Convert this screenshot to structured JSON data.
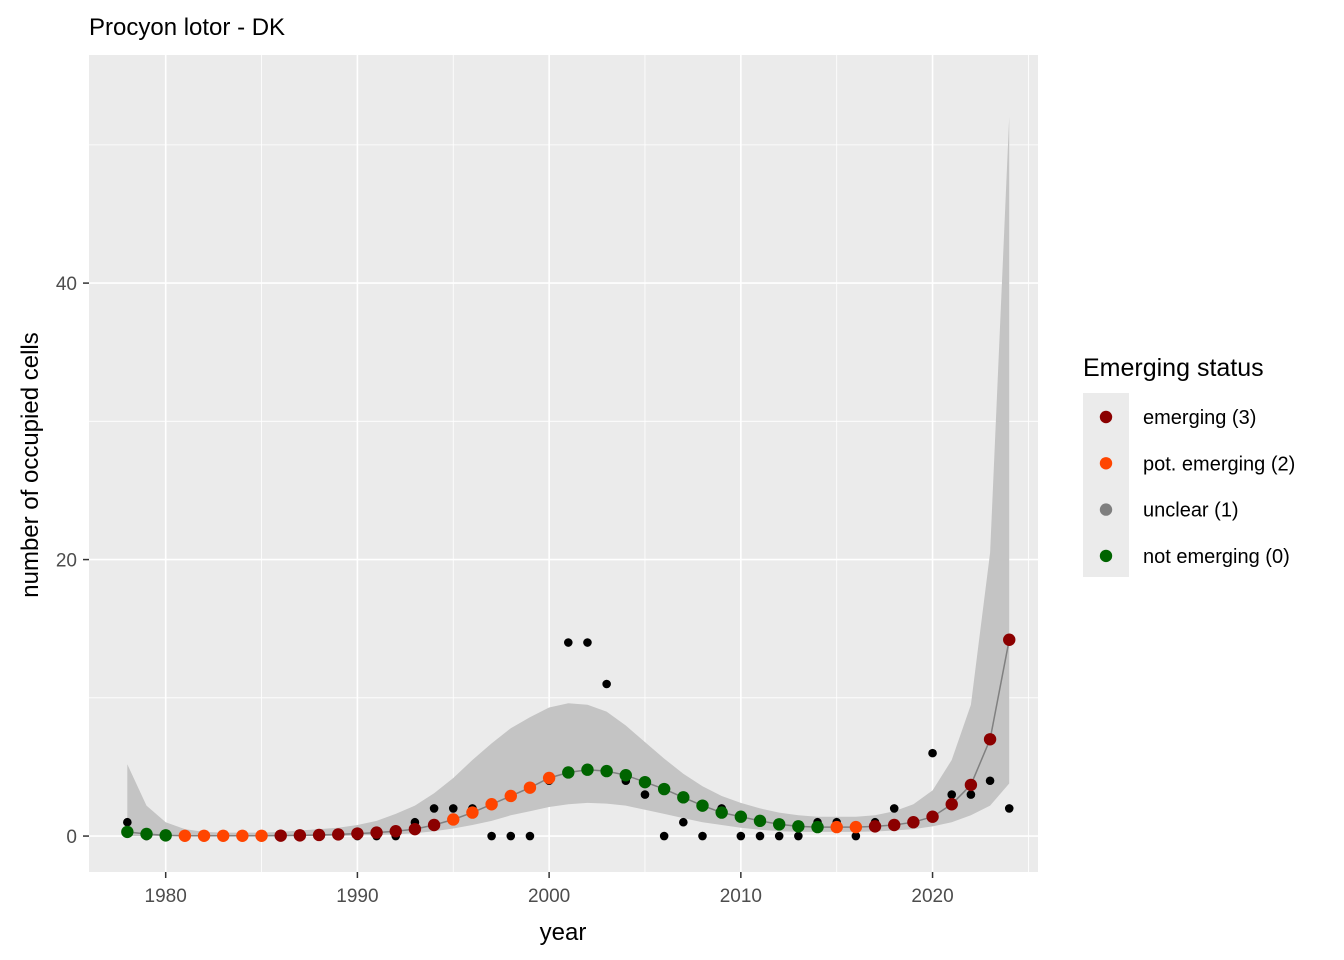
{
  "chart_data": {
    "type": "scatter",
    "title": "Procyon lotor - DK",
    "xlabel": "year",
    "ylabel": "number of occupied cells",
    "xlim": [
      1976,
      2025.5
    ],
    "ylim": [
      -2.6,
      56.5
    ],
    "x_ticks": [
      1980,
      1990,
      2000,
      2010,
      2020
    ],
    "y_ticks": [
      0,
      20,
      40
    ],
    "grid": true,
    "legend": {
      "title": "Emerging status",
      "position": "right",
      "entries": [
        {
          "label": "emerging (3)",
          "color": "#8b0000"
        },
        {
          "label": "pot. emerging (2)",
          "color": "#ff4500"
        },
        {
          "label": "unclear (1)",
          "color": "#7f7f7f"
        },
        {
          "label": "not emerging (0)",
          "color": "#006400"
        }
      ]
    },
    "colors": {
      "panel": "#ebebeb",
      "grid": "#ffffff",
      "ribbon": "#c4c4c4",
      "trend_line": "#808080",
      "observed_points": "#000000"
    },
    "observed": {
      "x": [
        1978,
        1979,
        1980,
        1981,
        1982,
        1983,
        1984,
        1985,
        1986,
        1987,
        1988,
        1989,
        1990,
        1991,
        1992,
        1993,
        1994,
        1995,
        1996,
        1997,
        1998,
        1999,
        2000,
        2001,
        2002,
        2003,
        2004,
        2005,
        2006,
        2007,
        2008,
        2009,
        2010,
        2011,
        2012,
        2013,
        2014,
        2015,
        2016,
        2017,
        2018,
        2019,
        2020,
        2021,
        2022,
        2023,
        2024
      ],
      "y": [
        1,
        0,
        0,
        0,
        0,
        0,
        0,
        0,
        0,
        0,
        0,
        0,
        0,
        0,
        0,
        1,
        2,
        2,
        2,
        0,
        0,
        0,
        4,
        14,
        14,
        11,
        4,
        3,
        0,
        1,
        0,
        2,
        0,
        0,
        0,
        0,
        1,
        1,
        0,
        1,
        2,
        1,
        6,
        3,
        3,
        4,
        2
      ]
    },
    "trend": {
      "x": [
        1978,
        1979,
        1980,
        1981,
        1982,
        1983,
        1984,
        1985,
        1986,
        1987,
        1988,
        1989,
        1990,
        1991,
        1992,
        1993,
        1994,
        1995,
        1996,
        1997,
        1998,
        1999,
        2000,
        2001,
        2002,
        2003,
        2004,
        2005,
        2006,
        2007,
        2008,
        2009,
        2010,
        2011,
        2012,
        2013,
        2014,
        2015,
        2016,
        2017,
        2018,
        2019,
        2020,
        2021,
        2022,
        2023,
        2024
      ],
      "y": [
        0.3,
        0.15,
        0.05,
        0.02,
        0.02,
        0.02,
        0.02,
        0.02,
        0.03,
        0.05,
        0.08,
        0.12,
        0.18,
        0.25,
        0.35,
        0.5,
        0.8,
        1.2,
        1.7,
        2.3,
        2.9,
        3.5,
        4.2,
        4.6,
        4.8,
        4.7,
        4.4,
        3.9,
        3.4,
        2.8,
        2.2,
        1.7,
        1.4,
        1.1,
        0.85,
        0.7,
        0.65,
        0.65,
        0.65,
        0.7,
        0.8,
        1.0,
        1.4,
        2.3,
        3.7,
        7.0,
        14.2
      ],
      "lower": [
        0.0,
        0.0,
        0.0,
        0.0,
        0.0,
        0.0,
        0.0,
        0.0,
        0.0,
        0.0,
        0.0,
        0.0,
        0.05,
        0.08,
        0.12,
        0.2,
        0.35,
        0.55,
        0.8,
        1.1,
        1.5,
        1.8,
        2.1,
        2.3,
        2.4,
        2.35,
        2.2,
        1.9,
        1.6,
        1.3,
        1.0,
        0.8,
        0.6,
        0.45,
        0.35,
        0.3,
        0.3,
        0.3,
        0.3,
        0.33,
        0.4,
        0.5,
        0.7,
        1.0,
        1.5,
        2.2,
        3.8
      ],
      "upper": [
        5.2,
        2.2,
        1.0,
        0.5,
        0.3,
        0.25,
        0.25,
        0.25,
        0.3,
        0.4,
        0.5,
        0.6,
        0.8,
        1.1,
        1.6,
        2.2,
        3.1,
        4.2,
        5.5,
        6.7,
        7.8,
        8.6,
        9.3,
        9.6,
        9.5,
        9.0,
        8.0,
        6.8,
        5.6,
        4.5,
        3.6,
        2.9,
        2.4,
        2.0,
        1.7,
        1.5,
        1.4,
        1.4,
        1.4,
        1.5,
        1.8,
        2.3,
        3.3,
        5.5,
        9.5,
        20.5,
        52.0
      ],
      "status": [
        "not emerging (0)",
        "not emerging (0)",
        "not emerging (0)",
        "pot. emerging (2)",
        "pot. emerging (2)",
        "pot. emerging (2)",
        "pot. emerging (2)",
        "pot. emerging (2)",
        "emerging (3)",
        "emerging (3)",
        "emerging (3)",
        "emerging (3)",
        "emerging (3)",
        "emerging (3)",
        "emerging (3)",
        "emerging (3)",
        "emerging (3)",
        "pot. emerging (2)",
        "pot. emerging (2)",
        "pot. emerging (2)",
        "pot. emerging (2)",
        "pot. emerging (2)",
        "pot. emerging (2)",
        "not emerging (0)",
        "not emerging (0)",
        "not emerging (0)",
        "not emerging (0)",
        "not emerging (0)",
        "not emerging (0)",
        "not emerging (0)",
        "not emerging (0)",
        "not emerging (0)",
        "not emerging (0)",
        "not emerging (0)",
        "not emerging (0)",
        "not emerging (0)",
        "not emerging (0)",
        "pot. emerging (2)",
        "pot. emerging (2)",
        "emerging (3)",
        "emerging (3)",
        "emerging (3)",
        "emerging (3)",
        "emerging (3)",
        "emerging (3)",
        "emerging (3)",
        "emerging (3)"
      ]
    }
  }
}
